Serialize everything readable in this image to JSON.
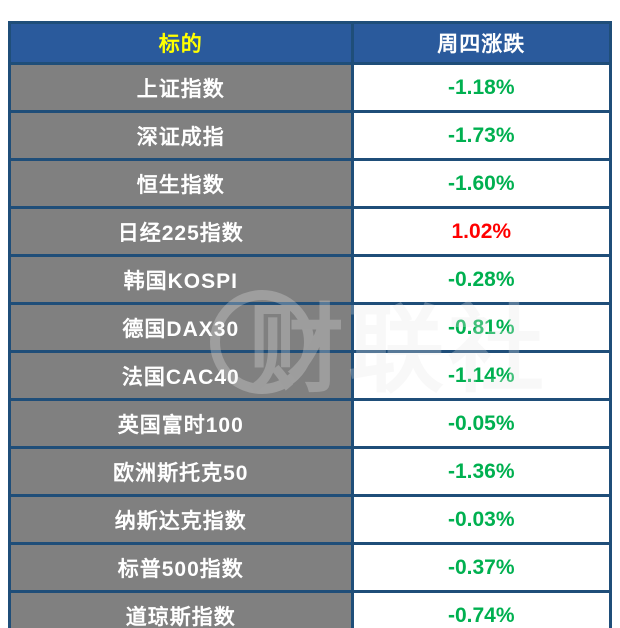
{
  "colors": {
    "header_bg": "#2a5a9c",
    "header_label_color": "#ffff00",
    "header_value_color": "#ffffff",
    "row_label_bg": "#808080",
    "row_label_color": "#ffffff",
    "negative_color": "#00b050",
    "positive_color": "#ff0000",
    "border_color": "#1f4e79"
  },
  "watermark": "财联社",
  "chart_data": {
    "type": "table",
    "title": "",
    "columns": [
      "标的",
      "周四涨跌"
    ],
    "rows": [
      {
        "label": "上证指数",
        "value": "-1.18%",
        "direction": "down"
      },
      {
        "label": "深证成指",
        "value": "-1.73%",
        "direction": "down"
      },
      {
        "label": "恒生指数",
        "value": "-1.60%",
        "direction": "down"
      },
      {
        "label": "日经225指数",
        "value": "1.02%",
        "direction": "up"
      },
      {
        "label": "韩国KOSPI",
        "value": "-0.28%",
        "direction": "down"
      },
      {
        "label": "德国DAX30",
        "value": "-0.81%",
        "direction": "down"
      },
      {
        "label": "法国CAC40",
        "value": "-1.14%",
        "direction": "down"
      },
      {
        "label": "英国富时100",
        "value": "-0.05%",
        "direction": "down"
      },
      {
        "label": "欧洲斯托克50",
        "value": "-1.36%",
        "direction": "down"
      },
      {
        "label": "纳斯达克指数",
        "value": "-0.03%",
        "direction": "down"
      },
      {
        "label": "标普500指数",
        "value": "-0.37%",
        "direction": "down"
      },
      {
        "label": "道琼斯指数",
        "value": "-0.74%",
        "direction": "down"
      }
    ]
  }
}
